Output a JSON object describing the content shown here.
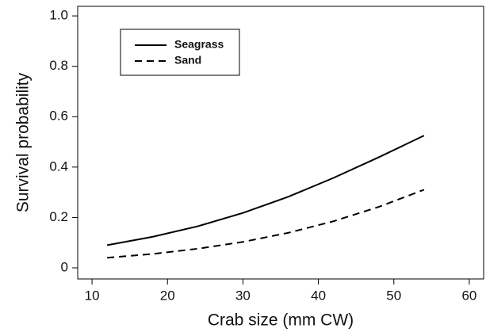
{
  "chart_data": {
    "type": "line",
    "x_label": "Crab size (mm CW)",
    "y_label": "Survival probability",
    "x": [
      12,
      18,
      24,
      30,
      36,
      42,
      48,
      54
    ],
    "series": [
      {
        "name": "Seagrass",
        "color": "#000000",
        "dash": "solid",
        "values": [
          0.09,
          0.123,
          0.165,
          0.218,
          0.282,
          0.357,
          0.439,
          0.525
        ]
      },
      {
        "name": "Sand",
        "color": "#000000",
        "dash": "dashed",
        "values": [
          0.04,
          0.055,
          0.076,
          0.103,
          0.139,
          0.185,
          0.242,
          0.31
        ]
      }
    ],
    "xlim": [
      8.1,
      61.9
    ],
    "xticks": [
      10,
      20,
      30,
      40,
      50,
      60
    ],
    "ylim": [
      -0.044,
      1.038
    ],
    "yticks": [
      0,
      0.2,
      0.4,
      0.6,
      0.8,
      {
        "value": 1,
        "label": "1.0"
      }
    ],
    "grid": false,
    "legend": "upper left"
  }
}
